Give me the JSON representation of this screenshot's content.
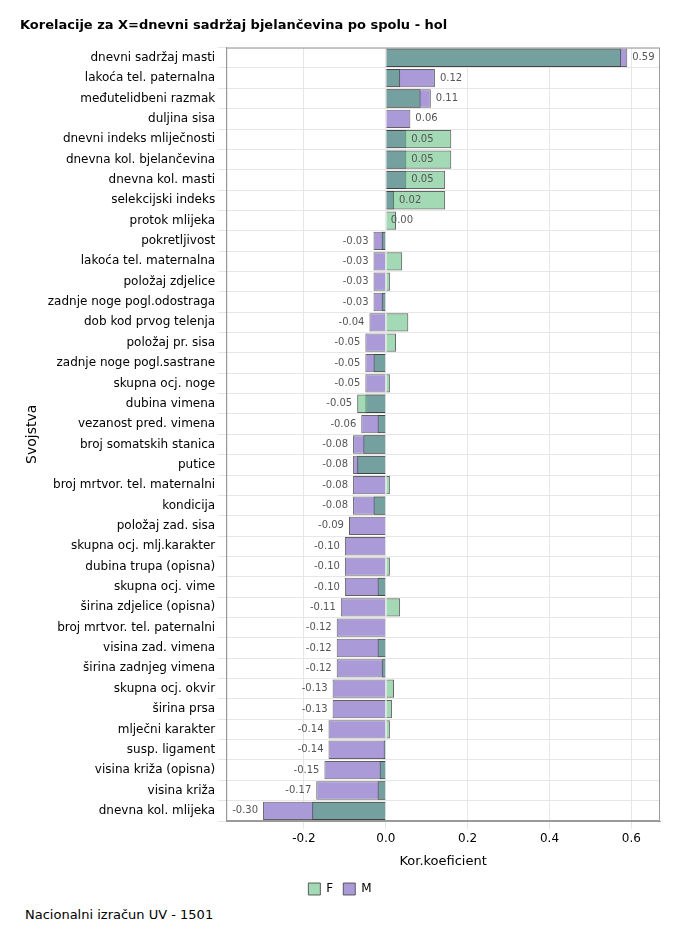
{
  "chart_data": {
    "type": "bar",
    "orientation": "horizontal",
    "title": "Korelacije za X=dnevni sadržaj bjelančevina po spolu - hol",
    "x_label": "Kor.koeficient",
    "y_label": "Svojstva",
    "annotations": [
      "Nacionalni izračun UV - 1501"
    ],
    "categories": [
      "dnevni sadržaj masti",
      "lakoća tel. paternalna",
      "međutelidbeni razmak",
      "duljina sisa",
      "dnevni indeks mliječnosti",
      "dnevna kol. bjelančevina",
      "dnevna kol. masti",
      "selekcijski indeks",
      "protok mlijeka",
      "pokretljivost",
      "lakoća tel. maternalna",
      "položaj zdjelice",
      "zadnje noge pogl.odostraga",
      "dob kod prvog telenja",
      "položaj pr. sisa",
      "zadnje noge pogl.sastrane",
      "skupna ocj. noge",
      "dubina vimena",
      "vezanost pred. vimena",
      "broj somatskih stanica",
      "putice",
      "broj mrtvor. tel. maternalni",
      "kondicija",
      "položaj zad. sisa",
      "skupna ocj. mlj.karakter",
      "dubina trupa (opisna)",
      "skupna ocj. vime",
      "širina zdjelice (opisna)",
      "broj mrtvor. tel. paternalni",
      "visina zad. vimena",
      "širina zadnjeg vimena",
      "skupna ocj. okvir",
      "širina prsa",
      "mlječni karakter",
      "susp. ligament",
      "visina križa (opisna)",
      "visina križa",
      "dnevna kol. mlijeka"
    ],
    "series": [
      {
        "name": "M",
        "color": "#aa9ad8",
        "values": [
          0.59,
          0.12,
          0.11,
          0.06,
          0.05,
          0.05,
          0.05,
          0.02,
          0.0,
          -0.03,
          -0.03,
          -0.03,
          -0.03,
          -0.04,
          -0.05,
          -0.05,
          -0.05,
          -0.05,
          -0.06,
          -0.08,
          -0.08,
          -0.08,
          -0.08,
          -0.09,
          -0.1,
          -0.1,
          -0.1,
          -0.11,
          -0.12,
          -0.12,
          -0.12,
          -0.13,
          -0.13,
          -0.14,
          -0.14,
          -0.15,
          -0.17,
          -0.3
        ],
        "value_labels": [
          "0.59",
          "0.12",
          "0.11",
          "0.06",
          "0.05",
          "0.05",
          "0.05",
          "0.02",
          "0.00",
          "-0.03",
          "-0.03",
          "-0.03",
          "-0.03",
          "-0.04",
          "-0.05",
          "-0.05",
          "-0.05",
          "-0.05",
          "-0.06",
          "-0.08",
          "-0.08",
          "-0.08",
          "-0.08",
          "-0.09",
          "-0.10",
          "-0.10",
          "-0.10",
          "-0.11",
          "-0.12",
          "-0.12",
          "-0.12",
          "-0.13",
          "-0.13",
          "-0.14",
          "-0.14",
          "-0.15",
          "-0.17",
          "-0.30"
        ]
      },
      {
        "name": "F",
        "color": "rgba(50,170,90,0.45)",
        "values": [
          0.575,
          0.035,
          0.085,
          0.0,
          0.16,
          0.16,
          0.145,
          0.145,
          0.025,
          -0.01,
          0.04,
          0.01,
          -0.01,
          0.055,
          0.025,
          -0.03,
          0.01,
          -0.07,
          -0.02,
          -0.055,
          -0.07,
          0.01,
          -0.03,
          0.0,
          0.0,
          0.01,
          -0.02,
          0.035,
          0.0,
          -0.02,
          -0.01,
          0.02,
          0.015,
          0.01,
          -0.005,
          -0.015,
          -0.02,
          -0.18
        ]
      }
    ],
    "xlim": [
      -0.39,
      0.67
    ],
    "xticks": [
      -0.2,
      {
        "value": 0,
        "label": "0.0"
      },
      0.2,
      0.4,
      0.6
    ],
    "grid": true,
    "legend": "bottom",
    "data_labels": true
  }
}
